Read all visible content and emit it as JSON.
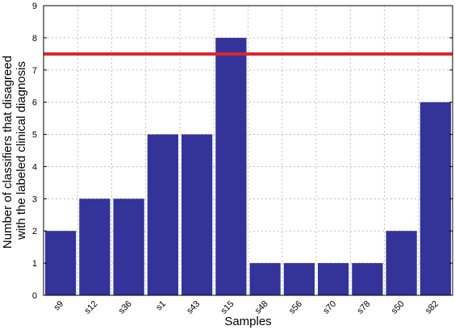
{
  "chart_data": {
    "type": "bar",
    "categories": [
      "s9",
      "s12",
      "s36",
      "s1",
      "s43",
      "s15",
      "s48",
      "s56",
      "s70",
      "s78",
      "s50",
      "s82"
    ],
    "values": [
      2,
      3,
      3,
      5,
      5,
      8,
      1,
      1,
      1,
      1,
      2,
      6
    ],
    "xlabel": "Samples",
    "ylabel_lines": [
      "Number of classifiers that disagreed",
      "with the labeled clinical diagnosis"
    ],
    "ylim": [
      0,
      9
    ],
    "yticks": [
      0,
      1,
      2,
      3,
      4,
      5,
      6,
      7,
      8,
      9
    ],
    "threshold": 7.5,
    "grid": true,
    "colors": {
      "bar": "#333399",
      "threshold": "#d9262b"
    }
  }
}
